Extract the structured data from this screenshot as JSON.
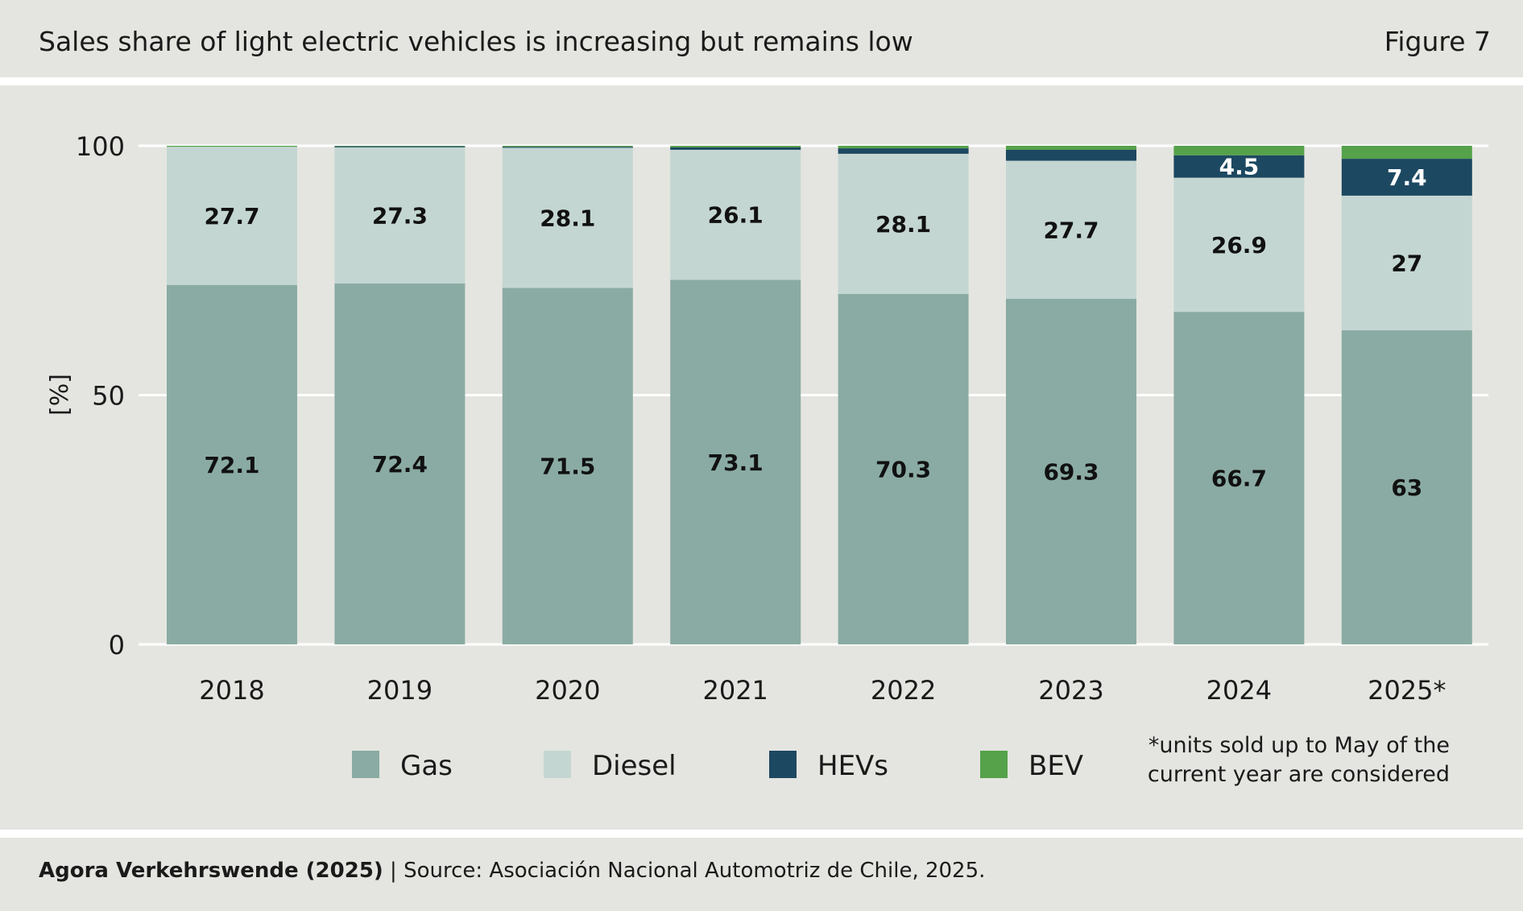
{
  "header": {
    "title": "Sales share of light electric vehicles is increasing but remains low",
    "figure_label": "Figure 7"
  },
  "footer": {
    "publisher": "Agora Verkehrswende (2025)",
    "separator": " | ",
    "source": "Source: Asociación Nacional Automotriz de Chile, 2025."
  },
  "chart_data": {
    "type": "bar",
    "stacked": true,
    "title": "Sales share of light electric vehicles is increasing but remains low",
    "xlabel": "",
    "ylabel": "[%]",
    "ylim": [
      0,
      100
    ],
    "yticks": [
      "0",
      "50",
      "100"
    ],
    "grid": true,
    "legend_placement": "bottom",
    "categories": [
      "2018",
      "2019",
      "2020",
      "2021",
      "2022",
      "2023",
      "2024",
      "2025*"
    ],
    "series": [
      {
        "name": "Gas",
        "color": "#8aaba3",
        "values": [
          72.1,
          72.4,
          71.5,
          73.1,
          70.3,
          69.3,
          66.7,
          63
        ],
        "labels": [
          "72.1",
          "72.4",
          "71.5",
          "73.1",
          "70.3",
          "69.3",
          "66.7",
          "63"
        ]
      },
      {
        "name": "Diesel",
        "color": "#c4d6d2",
        "values": [
          27.7,
          27.3,
          28.1,
          26.1,
          28.1,
          27.7,
          26.9,
          27
        ],
        "labels": [
          "27.7",
          "27.3",
          "28.1",
          "26.1",
          "28.1",
          "27.7",
          "26.9",
          "27"
        ]
      },
      {
        "name": "HEVs",
        "color": "#1d4861",
        "values": [
          0.0,
          0.2,
          0.2,
          0.5,
          1.1,
          2.2,
          4.5,
          7.4
        ],
        "labels": [
          "",
          "",
          "",
          "",
          "",
          "",
          "4.5",
          "7.4"
        ]
      },
      {
        "name": "BEV",
        "color": "#55a24a",
        "values": [
          0.2,
          0.1,
          0.2,
          0.3,
          0.5,
          0.8,
          1.9,
          2.6
        ],
        "labels": [
          "",
          "",
          "",
          "",
          "",
          "",
          "",
          ""
        ]
      }
    ],
    "note": "*units sold up to May of the current year are considered"
  }
}
